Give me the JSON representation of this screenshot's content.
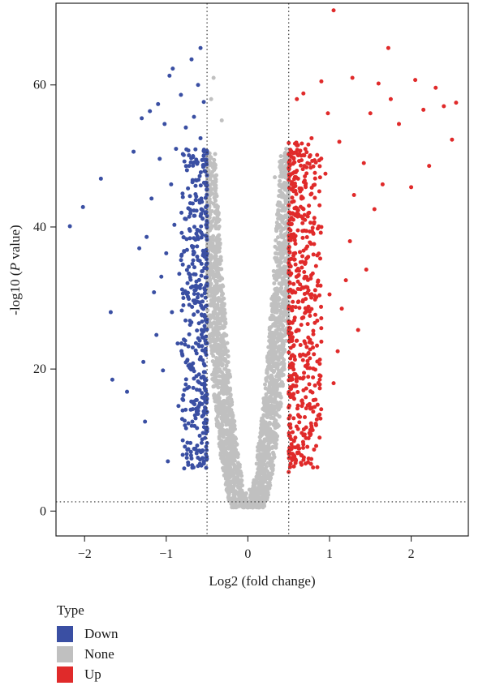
{
  "chart_data": {
    "type": "scatter",
    "title": "",
    "xlabel": "Log2 (fold change)",
    "ylabel_prefix": "-log10 (",
    "ylabel_italic": "P",
    "ylabel_suffix": " value)",
    "xlim": [
      -2.35,
      2.7
    ],
    "ylim": [
      -3.5,
      71.5
    ],
    "xticks": [
      -2,
      -1,
      0,
      1,
      2
    ],
    "xtick_labels": [
      "−2",
      "−1",
      "0",
      "1",
      "2"
    ],
    "yticks": [
      0,
      20,
      40,
      60
    ],
    "ytick_labels": [
      "0",
      "20",
      "40",
      "60"
    ],
    "thresholds": {
      "log2fc": [
        -0.5,
        0.5
      ],
      "neg_log10_p": 1.3
    },
    "grid": false,
    "legend": {
      "title": "Type",
      "position": "bottom-left",
      "items": [
        {
          "label": "Down",
          "color": "#3a4fa3"
        },
        {
          "label": "None",
          "color": "#c0c0c0"
        },
        {
          "label": "Up",
          "color": "#e02a2a"
        }
      ]
    },
    "series": [
      {
        "name": "Down",
        "color": "#3a4fa3",
        "points": [
          [
            -2.18,
            40.1
          ],
          [
            -2.02,
            42.8
          ],
          [
            -1.8,
            46.8
          ],
          [
            -1.68,
            28.0
          ],
          [
            -1.66,
            18.5
          ],
          [
            -1.48,
            16.8
          ],
          [
            -1.4,
            50.6
          ],
          [
            -1.33,
            37.0
          ],
          [
            -1.3,
            55.3
          ],
          [
            -1.28,
            21.0
          ],
          [
            -1.26,
            12.6
          ],
          [
            -1.24,
            38.6
          ],
          [
            -1.2,
            56.3
          ],
          [
            -1.18,
            44.0
          ],
          [
            -1.15,
            30.8
          ],
          [
            -1.12,
            24.8
          ],
          [
            -1.1,
            57.3
          ],
          [
            -1.08,
            49.6
          ],
          [
            -1.06,
            33.0
          ],
          [
            -1.04,
            19.8
          ],
          [
            -1.02,
            54.5
          ],
          [
            -1.0,
            36.3
          ],
          [
            -0.98,
            7.0
          ],
          [
            -0.96,
            61.3
          ],
          [
            -0.94,
            46.0
          ],
          [
            -0.93,
            28.0
          ],
          [
            -0.92,
            62.3
          ],
          [
            -0.9,
            40.3
          ],
          [
            -0.88,
            51.0
          ],
          [
            -0.86,
            23.6
          ],
          [
            -0.85,
            14.8
          ],
          [
            -0.84,
            33.4
          ],
          [
            -0.82,
            58.6
          ],
          [
            -0.8,
            44.7
          ],
          [
            -0.79,
            30.0
          ],
          [
            -0.78,
            6.0
          ],
          [
            -0.76,
            54.0
          ],
          [
            -0.75,
            38.3
          ],
          [
            -0.74,
            21.3
          ],
          [
            -0.72,
            48.6
          ],
          [
            -0.71,
            26.8
          ],
          [
            -0.7,
            42.3
          ],
          [
            -0.69,
            63.6
          ],
          [
            -0.68,
            12.6
          ],
          [
            -0.67,
            35.3
          ],
          [
            -0.66,
            55.5
          ],
          [
            -0.65,
            29.3
          ],
          [
            -0.64,
            46.6
          ],
          [
            -0.63,
            19.0
          ],
          [
            -0.62,
            39.6
          ],
          [
            -0.61,
            60.0
          ],
          [
            -0.6,
            31.6
          ],
          [
            -0.59,
            24.0
          ],
          [
            -0.58,
            52.5
          ],
          [
            -0.57,
            44.0
          ],
          [
            -0.56,
            16.0
          ],
          [
            -0.55,
            36.0
          ],
          [
            -0.54,
            57.6
          ],
          [
            -0.53,
            27.6
          ],
          [
            -0.52,
            47.8
          ],
          [
            -0.51,
            22.0
          ],
          [
            -0.5,
            40.6
          ],
          [
            -0.58,
            65.2
          ],
          [
            -0.62,
            8.5
          ],
          [
            -0.55,
            11.0
          ]
        ]
      },
      {
        "name": "None",
        "color": "#c0c0c0",
        "points": [
          [
            0.0,
            0.5
          ],
          [
            -0.05,
            1.0
          ],
          [
            0.05,
            1.0
          ],
          [
            -0.1,
            2.0
          ],
          [
            0.1,
            2.0
          ],
          [
            -0.15,
            4.0
          ],
          [
            0.15,
            4.0
          ],
          [
            -0.2,
            7.0
          ],
          [
            0.2,
            7.0
          ],
          [
            -0.25,
            10.0
          ],
          [
            0.25,
            10.0
          ],
          [
            -0.3,
            14.0
          ],
          [
            0.3,
            14.0
          ],
          [
            -0.35,
            19.0
          ],
          [
            0.35,
            19.0
          ],
          [
            -0.4,
            25.0
          ],
          [
            0.4,
            25.0
          ],
          [
            -0.45,
            32.0
          ],
          [
            0.45,
            32.0
          ],
          [
            -0.48,
            40.0
          ],
          [
            0.48,
            40.0
          ],
          [
            -0.47,
            50.0
          ],
          [
            0.46,
            48.0
          ],
          [
            -0.45,
            58.0
          ],
          [
            -0.42,
            61.0
          ],
          [
            0.47,
            51.0
          ],
          [
            0.43,
            43.0
          ],
          [
            -0.38,
            35.0
          ],
          [
            0.38,
            30.0
          ],
          [
            -0.3,
            28.0
          ],
          [
            0.28,
            22.0
          ],
          [
            -0.22,
            17.0
          ],
          [
            0.22,
            16.0
          ],
          [
            -0.12,
            8.0
          ],
          [
            0.12,
            9.0
          ],
          [
            -0.35,
            41.0
          ],
          [
            -0.32,
            55.0
          ],
          [
            0.33,
            47.0
          ],
          [
            0.02,
            3.0
          ],
          [
            -0.02,
            2.5
          ]
        ]
      },
      {
        "name": "Up",
        "color": "#e02a2a",
        "points": [
          [
            1.05,
            70.5
          ],
          [
            1.72,
            65.2
          ],
          [
            2.0,
            45.6
          ],
          [
            2.05,
            60.7
          ],
          [
            2.15,
            56.5
          ],
          [
            2.22,
            48.6
          ],
          [
            2.3,
            59.6
          ],
          [
            2.4,
            57.0
          ],
          [
            2.5,
            52.3
          ],
          [
            2.55,
            57.5
          ],
          [
            1.6,
            60.2
          ],
          [
            1.75,
            58.0
          ],
          [
            1.85,
            54.5
          ],
          [
            1.5,
            56.0
          ],
          [
            1.42,
            49.0
          ],
          [
            1.3,
            44.5
          ],
          [
            1.25,
            38.0
          ],
          [
            1.2,
            32.5
          ],
          [
            1.15,
            28.5
          ],
          [
            1.1,
            22.5
          ],
          [
            1.05,
            18.0
          ],
          [
            0.95,
            47.5
          ],
          [
            0.9,
            60.5
          ],
          [
            0.85,
            36.0
          ],
          [
            0.82,
            26.5
          ],
          [
            0.8,
            14.0
          ],
          [
            0.78,
            52.5
          ],
          [
            0.75,
            42.0
          ],
          [
            0.72,
            20.5
          ],
          [
            0.7,
            33.0
          ],
          [
            0.68,
            58.8
          ],
          [
            0.66,
            11.0
          ],
          [
            0.64,
            45.0
          ],
          [
            0.62,
            29.5
          ],
          [
            0.6,
            24.0
          ],
          [
            0.58,
            50.5
          ],
          [
            0.57,
            38.5
          ],
          [
            0.56,
            16.5
          ],
          [
            0.55,
            8.0
          ],
          [
            0.54,
            43.5
          ],
          [
            0.53,
            31.0
          ],
          [
            0.52,
            21.5
          ],
          [
            0.51,
            36.5
          ],
          [
            0.5,
            5.5
          ],
          [
            0.6,
            58.0
          ],
          [
            0.9,
            40.0
          ],
          [
            1.0,
            30.5
          ],
          [
            1.35,
            25.5
          ],
          [
            1.45,
            34.0
          ],
          [
            1.55,
            42.5
          ],
          [
            1.65,
            46.0
          ],
          [
            0.88,
            18.5
          ],
          [
            0.76,
            27.5
          ],
          [
            0.63,
            12.5
          ],
          [
            1.12,
            52.0
          ],
          [
            1.28,
            61.0
          ],
          [
            0.98,
            56.0
          ],
          [
            0.73,
            49.0
          ],
          [
            0.69,
            39.5
          ],
          [
            0.59,
            47.0
          ]
        ]
      }
    ]
  }
}
